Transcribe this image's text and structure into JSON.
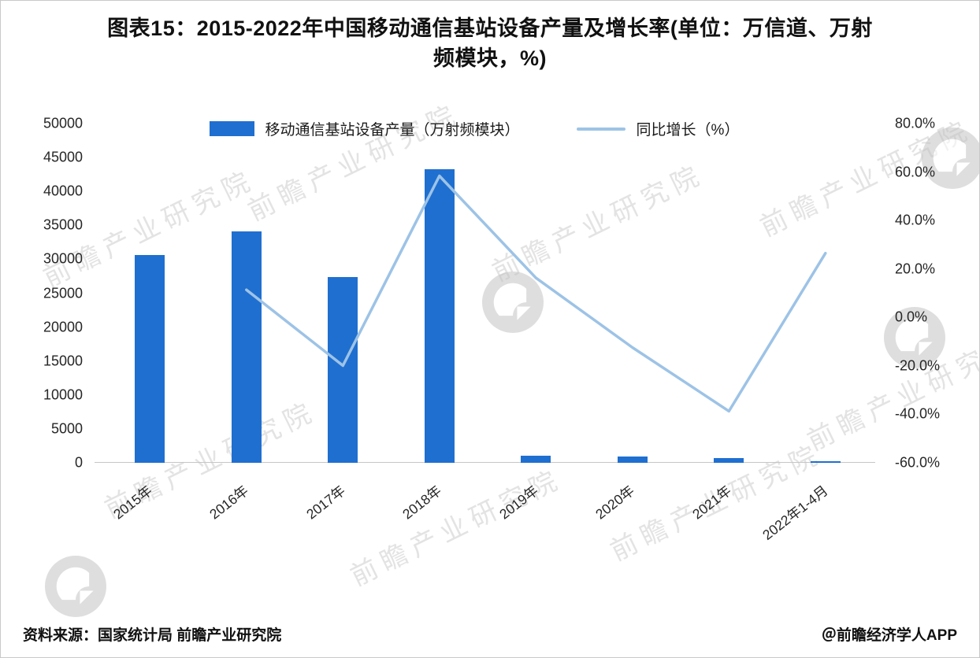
{
  "figure": {
    "title_line1": "图表15：2015-2022年中国移动通信基站设备产量及增长率(单位：万信道、万射",
    "title_line2": "频模块，%)",
    "source": "资料来源：国家统计局 前瞻产业研究院",
    "credit": "＠前瞻经济学人APP",
    "watermark_text": "前瞻产业研究院"
  },
  "chart_data": {
    "type": "bar",
    "subtype": "bar+line-combo",
    "title": "图表15：2015-2022年中国移动通信基站设备产量及增长率(单位：万信道、万射频模块，%)",
    "categories": [
      "2015年",
      "2016年",
      "2017年",
      "2018年",
      "2019年",
      "2020年",
      "2021年",
      "2022年1-4月"
    ],
    "series": [
      {
        "name": "移动通信基站设备产量（万射频模块）",
        "type": "bar",
        "axis": "left",
        "color": "#1F6FD0",
        "values": [
          30600,
          34100,
          27400,
          43300,
          1100,
          900,
          650,
          250
        ]
      },
      {
        "name": "同比增长（%）",
        "type": "line",
        "axis": "right",
        "color": "#9DC3E6",
        "values": [
          null,
          11.4,
          -19.9,
          58.4,
          16.3,
          -12.4,
          -38.7,
          26.5
        ]
      }
    ],
    "left_axis": {
      "min": 0,
      "max": 50000,
      "step": 5000,
      "ticks": [
        "50000",
        "45000",
        "40000",
        "35000",
        "30000",
        "25000",
        "20000",
        "15000",
        "10000",
        "5000",
        "0"
      ]
    },
    "right_axis": {
      "min": -60,
      "max": 80,
      "step": 20,
      "ticks": [
        "80.0%",
        "60.0%",
        "40.0%",
        "20.0%",
        "0.0%",
        "-20.0%",
        "-40.0%",
        "-60.0%"
      ]
    },
    "legend_position": "top",
    "grid": false
  }
}
